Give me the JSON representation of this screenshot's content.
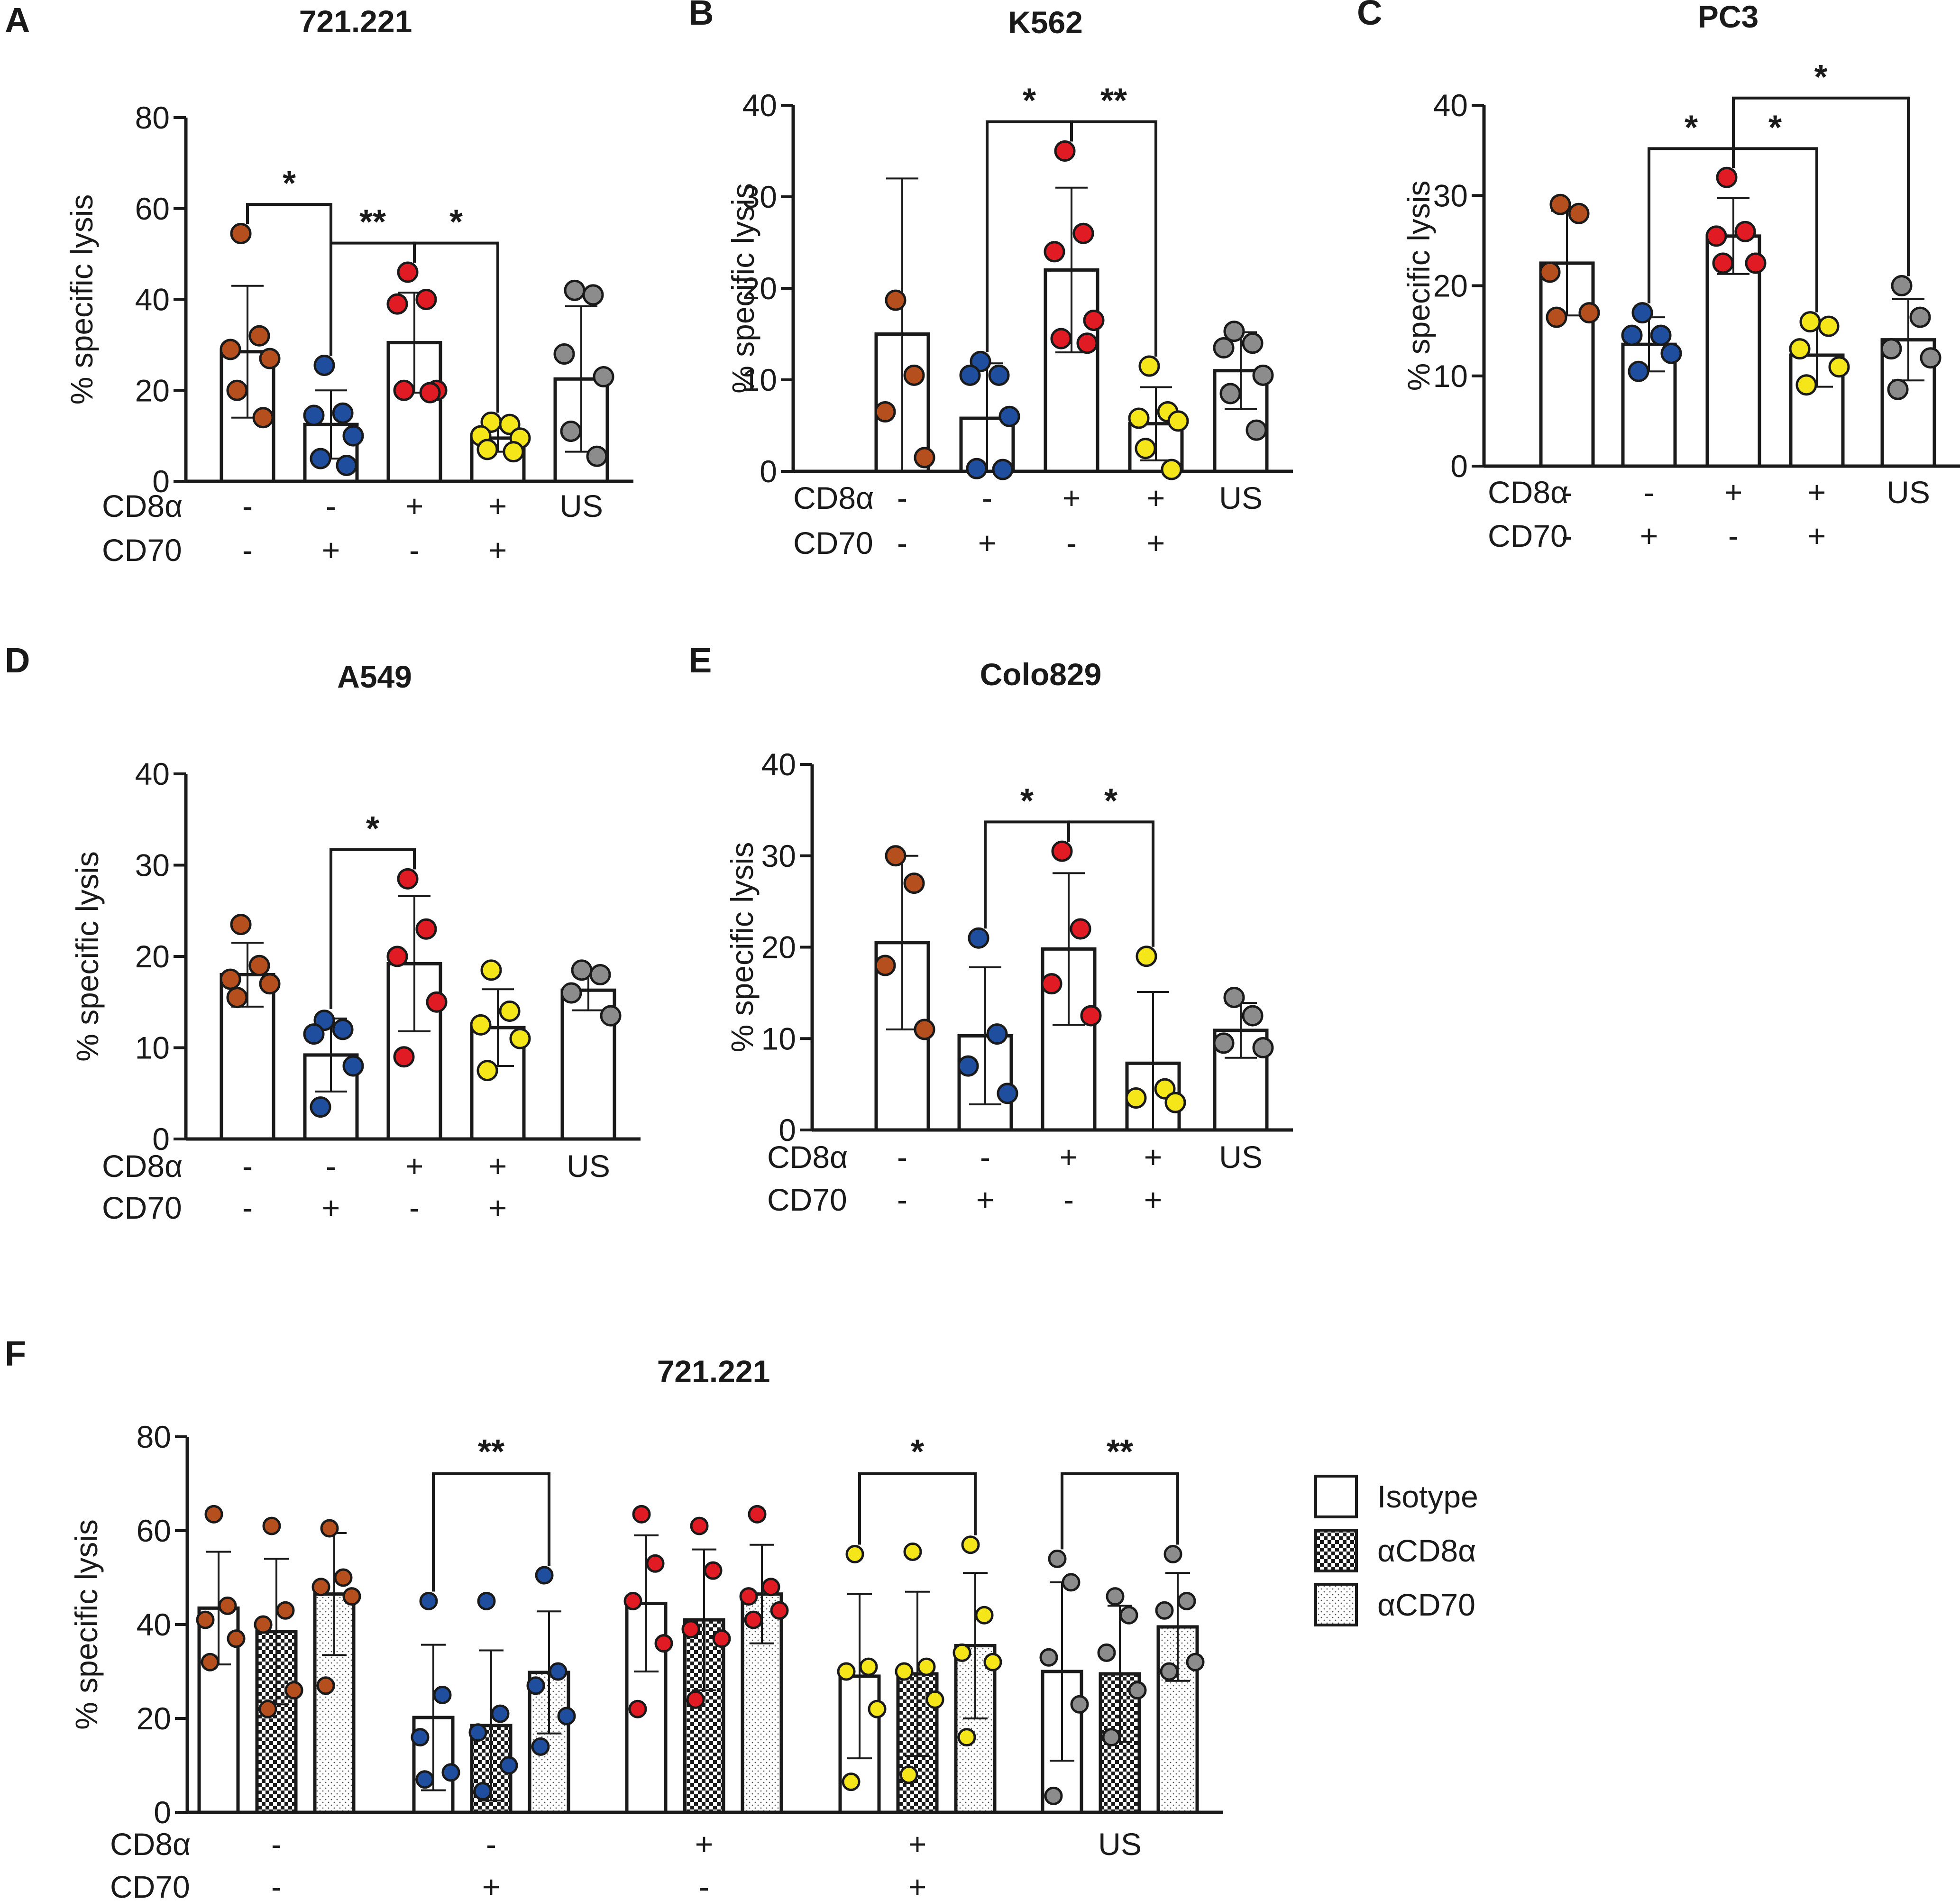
{
  "colors": {
    "brown": "#b5501e",
    "blue": "#1f4e9e",
    "red": "#e11b23",
    "yellow": "#f4e618",
    "gray": "#8c8c8c"
  },
  "panels": [
    {
      "letter": "A",
      "title": "721.221",
      "ylabel": "% specific lysis",
      "ylim": [
        0,
        80
      ],
      "yticks": [
        0,
        20,
        40,
        60,
        80
      ],
      "row_labels": [
        "CD8α",
        "CD70"
      ],
      "groups": [
        {
          "cd8a": "-",
          "cd70": "-",
          "color": "brown",
          "mean": 28.5,
          "sd": 14.5,
          "points": [
            54.5,
            32,
            29,
            27,
            20,
            14
          ]
        },
        {
          "cd8a": "-",
          "cd70": "+",
          "color": "blue",
          "mean": 12.5,
          "sd": 7.5,
          "points": [
            25.5,
            15,
            14.5,
            10,
            5,
            3.5
          ]
        },
        {
          "cd8a": "+",
          "cd70": "-",
          "color": "red",
          "mean": 30.5,
          "sd": 11,
          "points": [
            46,
            40,
            39,
            20,
            20,
            19.5
          ]
        },
        {
          "cd8a": "+",
          "cd70": "+",
          "color": "yellow",
          "mean": 9.5,
          "sd": 3,
          "points": [
            13,
            12.5,
            10,
            9.5,
            7,
            6.5
          ]
        },
        {
          "cd8a": "US",
          "cd70": "",
          "color": "gray",
          "mean": 22.5,
          "sd": 16,
          "points": [
            42,
            41,
            28,
            23,
            11,
            5.5
          ]
        }
      ],
      "brackets": [
        {
          "from": 0,
          "to": 1,
          "label": "*"
        },
        {
          "from": 1,
          "to": 2,
          "label": "**"
        },
        {
          "from": 2,
          "to": 3,
          "label": "*"
        }
      ]
    },
    {
      "letter": "B",
      "title": "K562",
      "ylabel": "% specific lysis",
      "ylim": [
        0,
        40
      ],
      "yticks": [
        0,
        10,
        20,
        30,
        40
      ],
      "row_labels": [
        "CD8α",
        "CD70"
      ],
      "groups": [
        {
          "cd8a": "-",
          "cd70": "-",
          "color": "brown",
          "mean": 15,
          "sd": 17,
          "points": [
            18.7,
            10.5,
            6.5,
            1.5
          ]
        },
        {
          "cd8a": "-",
          "cd70": "+",
          "color": "blue",
          "mean": 5.8,
          "sd": 6,
          "points": [
            12,
            10.5,
            10.5,
            6,
            0.3,
            0.2
          ]
        },
        {
          "cd8a": "+",
          "cd70": "-",
          "color": "red",
          "mean": 22,
          "sd": 9,
          "points": [
            35,
            26,
            24,
            16.5,
            14.5,
            14
          ]
        },
        {
          "cd8a": "+",
          "cd70": "+",
          "color": "yellow",
          "mean": 5.2,
          "sd": 4,
          "points": [
            11.5,
            6.5,
            5.8,
            5.5,
            2.5,
            0.2
          ]
        },
        {
          "cd8a": "US",
          "cd70": "",
          "color": "gray",
          "mean": 11,
          "sd": 4.2,
          "points": [
            15.3,
            14,
            13.5,
            10.5,
            8.5,
            4.5
          ]
        }
      ],
      "brackets": [
        {
          "from": 1,
          "to": 2,
          "label": "*"
        },
        {
          "from": 2,
          "to": 3,
          "label": "**"
        }
      ]
    },
    {
      "letter": "C",
      "title": "PC3",
      "ylabel": "% specific lysis",
      "ylim": [
        0,
        40
      ],
      "yticks": [
        0,
        10,
        20,
        30,
        40
      ],
      "row_labels": [
        "CD8α",
        "CD70"
      ],
      "groups": [
        {
          "cd8a": "-",
          "cd70": "-",
          "color": "brown",
          "mean": 22.5,
          "sd": 5.8,
          "points": [
            29,
            28,
            21.5,
            17,
            16.5
          ]
        },
        {
          "cd8a": "-",
          "cd70": "+",
          "color": "blue",
          "mean": 13.5,
          "sd": 3,
          "points": [
            17,
            14.5,
            14.5,
            12.5,
            10.5
          ]
        },
        {
          "cd8a": "+",
          "cd70": "-",
          "color": "red",
          "mean": 25.5,
          "sd": 4.2,
          "points": [
            32,
            26,
            25.5,
            22.5,
            22.5
          ]
        },
        {
          "cd8a": "+",
          "cd70": "+",
          "color": "yellow",
          "mean": 12.3,
          "sd": 3.5,
          "points": [
            16,
            15.5,
            13,
            11,
            9
          ]
        },
        {
          "cd8a": "US",
          "cd70": "",
          "color": "gray",
          "mean": 14,
          "sd": 4.5,
          "points": [
            20,
            16.5,
            13,
            12,
            8.5
          ]
        }
      ],
      "brackets": [
        {
          "from": 1,
          "to": 2,
          "label": "*"
        },
        {
          "from": 2,
          "to": 3,
          "label": "*"
        },
        {
          "from": 2,
          "to": 4,
          "label": "*"
        }
      ]
    },
    {
      "letter": "D",
      "title": "A549",
      "ylabel": "% specific lysis",
      "ylim": [
        0,
        40
      ],
      "yticks": [
        0,
        10,
        20,
        30,
        40
      ],
      "row_labels": [
        "CD8α",
        "CD70"
      ],
      "groups": [
        {
          "cd8a": "-",
          "cd70": "-",
          "color": "brown",
          "mean": 18,
          "sd": 3.5,
          "points": [
            23.5,
            19,
            17.5,
            17,
            15.5
          ]
        },
        {
          "cd8a": "-",
          "cd70": "+",
          "color": "blue",
          "mean": 9.2,
          "sd": 4,
          "points": [
            13,
            12,
            11.5,
            8,
            3.5
          ]
        },
        {
          "cd8a": "+",
          "cd70": "-",
          "color": "red",
          "mean": 19.2,
          "sd": 7.4,
          "points": [
            28.5,
            23,
            20,
            15,
            9
          ]
        },
        {
          "cd8a": "+",
          "cd70": "+",
          "color": "yellow",
          "mean": 12.2,
          "sd": 4.2,
          "points": [
            18.5,
            14,
            12.5,
            11,
            7.5
          ]
        },
        {
          "cd8a": "US",
          "cd70": "",
          "color": "gray",
          "mean": 16.3,
          "sd": 2.2,
          "points": [
            18.5,
            18,
            16,
            13.5
          ]
        }
      ],
      "brackets": [
        {
          "from": 1,
          "to": 2,
          "label": "*"
        }
      ]
    },
    {
      "letter": "E",
      "title": "Colo829",
      "ylabel": "% specific lysis",
      "ylim": [
        0,
        40
      ],
      "yticks": [
        0,
        10,
        20,
        30,
        40
      ],
      "row_labels": [
        "CD8α",
        "CD70"
      ],
      "groups": [
        {
          "cd8a": "-",
          "cd70": "-",
          "color": "brown",
          "mean": 20.5,
          "sd": 9.5,
          "points": [
            30,
            27,
            18,
            11
          ]
        },
        {
          "cd8a": "-",
          "cd70": "+",
          "color": "blue",
          "mean": 10.3,
          "sd": 7.5,
          "points": [
            21,
            10.5,
            7,
            4
          ]
        },
        {
          "cd8a": "+",
          "cd70": "-",
          "color": "red",
          "mean": 19.8,
          "sd": 8.3,
          "points": [
            30.5,
            22,
            16,
            12.5
          ]
        },
        {
          "cd8a": "+",
          "cd70": "+",
          "color": "yellow",
          "mean": 7.3,
          "sd": 7.8,
          "points": [
            19,
            4.5,
            3.5,
            3
          ]
        },
        {
          "cd8a": "US",
          "cd70": "",
          "color": "gray",
          "mean": 10.9,
          "sd": 3,
          "points": [
            14.5,
            12.5,
            9.5,
            9
          ]
        }
      ],
      "brackets": [
        {
          "from": 1,
          "to": 2,
          "label": "*"
        },
        {
          "from": 2,
          "to": 3,
          "label": "*"
        }
      ]
    }
  ],
  "panel_f": {
    "letter": "F",
    "title": "721.221",
    "ylabel": "% specific lysis",
    "ylim": [
      0,
      80
    ],
    "yticks": [
      0,
      20,
      40,
      60,
      80
    ],
    "row_labels": [
      "CD8α",
      "CD70"
    ],
    "legend": [
      {
        "label": "Isotype",
        "fill": "plain"
      },
      {
        "label": "αCD8α",
        "fill": "checker"
      },
      {
        "label": "αCD70",
        "fill": "dots"
      }
    ],
    "groups": [
      {
        "cd8a": "-",
        "cd70": "-",
        "color": "brown",
        "bars": [
          {
            "mean": 43.5,
            "sd": 12,
            "points": [
              63.5,
              44,
              41,
              37,
              32
            ]
          },
          {
            "mean": 38.5,
            "sd": 15.5,
            "points": [
              61,
              43,
              40,
              26,
              22
            ]
          },
          {
            "mean": 46.5,
            "sd": 13,
            "points": [
              60.5,
              50,
              48,
              46,
              27
            ]
          }
        ]
      },
      {
        "cd8a": "-",
        "cd70": "+",
        "color": "blue",
        "bars": [
          {
            "mean": 20.2,
            "sd": 15.5,
            "points": [
              45,
              25,
              16,
              8.5,
              7
            ]
          },
          {
            "mean": 18.5,
            "sd": 16,
            "points": [
              45,
              21,
              17,
              10,
              4.5
            ]
          },
          {
            "mean": 29.8,
            "sd": 13,
            "points": [
              50.5,
              30,
              27,
              20.5,
              14
            ]
          }
        ]
      },
      {
        "cd8a": "+",
        "cd70": "-",
        "color": "red",
        "bars": [
          {
            "mean": 44.5,
            "sd": 14.5,
            "points": [
              63.5,
              53,
              45,
              36,
              22
            ]
          },
          {
            "mean": 41,
            "sd": 15,
            "points": [
              61,
              51.5,
              39,
              37,
              24
            ]
          },
          {
            "mean": 46.5,
            "sd": 10.5,
            "points": [
              63.5,
              48,
              46,
              43,
              41
            ]
          }
        ]
      },
      {
        "cd8a": "+",
        "cd70": "+",
        "color": "yellow",
        "bars": [
          {
            "mean": 29,
            "sd": 17.5,
            "points": [
              55,
              31,
              30,
              22,
              6.5
            ]
          },
          {
            "mean": 29.5,
            "sd": 17.5,
            "points": [
              55.5,
              31,
              30,
              24,
              8
            ]
          },
          {
            "mean": 35.5,
            "sd": 15.5,
            "points": [
              57,
              42,
              34,
              32,
              16
            ]
          }
        ]
      },
      {
        "cd8a": "US",
        "cd70": "",
        "color": "gray",
        "bars": [
          {
            "mean": 30,
            "sd": 19,
            "points": [
              54,
              49,
              33,
              23,
              3.5
            ]
          },
          {
            "mean": 29.5,
            "sd": 14.5,
            "points": [
              46,
              42,
              34,
              26,
              16
            ]
          },
          {
            "mean": 39.5,
            "sd": 11.5,
            "points": [
              55,
              45,
              43,
              32,
              30
            ]
          }
        ]
      }
    ],
    "brackets": [
      {
        "group": 1,
        "from": 0,
        "to": 2,
        "label": "**"
      },
      {
        "group": 3,
        "from": 0,
        "to": 2,
        "label": "*"
      },
      {
        "group": 4,
        "from": 0,
        "to": 2,
        "label": "**"
      }
    ]
  }
}
